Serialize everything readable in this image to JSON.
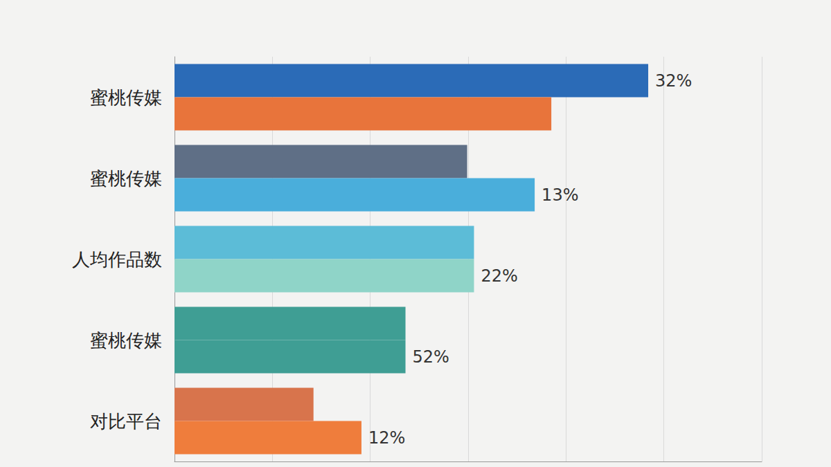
{
  "chart_data": {
    "type": "bar",
    "orientation": "horizontal",
    "categories": [
      "蜜桃传媒",
      "蜜桃传媒",
      "人均作品数",
      "蜜桃传媒",
      "对比平台"
    ],
    "series": [
      {
        "colors": [
          "#2b6bb7",
          "#5f6f86",
          "#5cbcd7",
          "#3f9e94",
          "#d8744c"
        ],
        "values": [
          4.84,
          2.99,
          3.06,
          2.36,
          1.42
        ]
      },
      {
        "colors": [
          "#e8743b",
          "#4aaedb",
          "#8fd4c8",
          "#3f9e94",
          "#ef7d3c"
        ],
        "values": [
          3.85,
          3.68,
          3.06,
          2.36,
          1.91
        ]
      }
    ],
    "annotations": [
      "32%",
      "13%",
      "22%",
      "52%",
      "12%"
    ],
    "xlim": [
      0,
      6
    ],
    "xticks": [
      0,
      1,
      2,
      3,
      4,
      5,
      6
    ],
    "grid": true,
    "tick_labels": "y",
    "data_labels": false
  }
}
